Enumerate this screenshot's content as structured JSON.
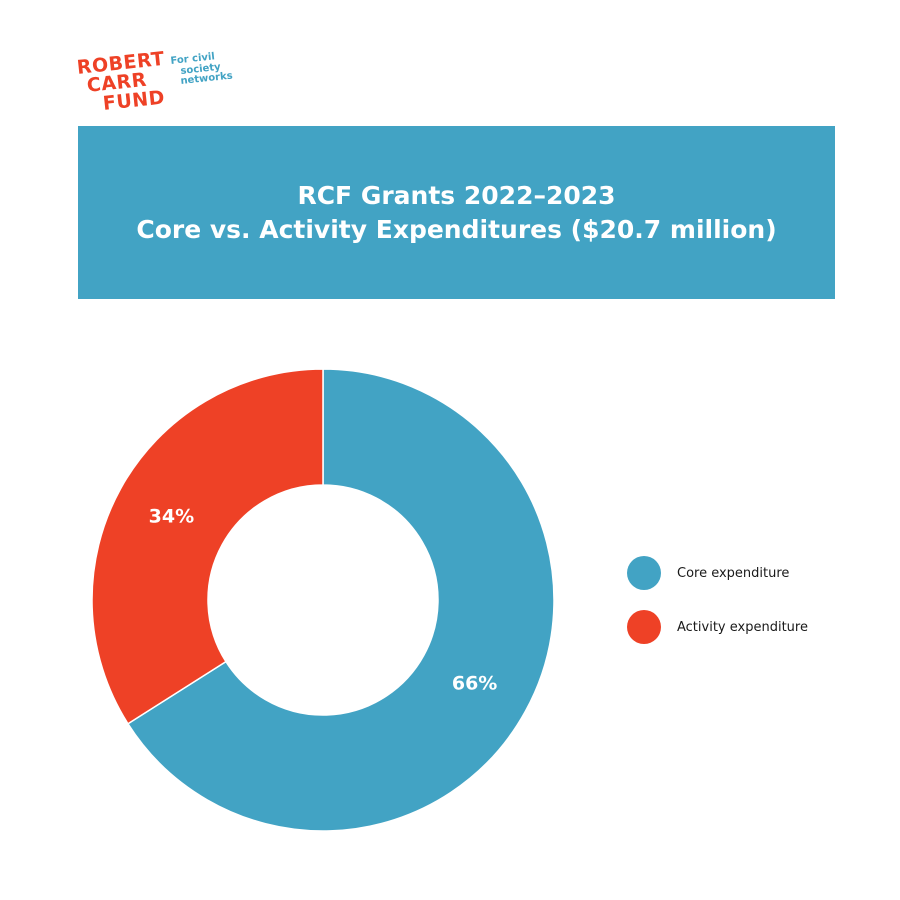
{
  "logo": {
    "line1": "ROBERT",
    "line2": "CARR",
    "line3": "FUND",
    "tag1": "For civil",
    "tag2": "society",
    "tag3": "networks",
    "word_color": "#ee4126",
    "tag_color": "#42a3c4"
  },
  "colors": {
    "banner": "#42a3c4",
    "core": "#42a3c4",
    "activity": "#ee4126"
  },
  "chart_data": {
    "type": "pie",
    "variant": "donut",
    "title": "RCF Grants 2022–2023",
    "subtitle": "Core vs. Activity Expenditures ($20.7 million)",
    "legend_position": "right",
    "slices": [
      {
        "name": "Core expenditure",
        "value": 66,
        "label": "66%",
        "color": "#42a3c4"
      },
      {
        "name": "Activity expenditure",
        "value": 34,
        "label": "34%",
        "color": "#ee4126"
      }
    ]
  }
}
